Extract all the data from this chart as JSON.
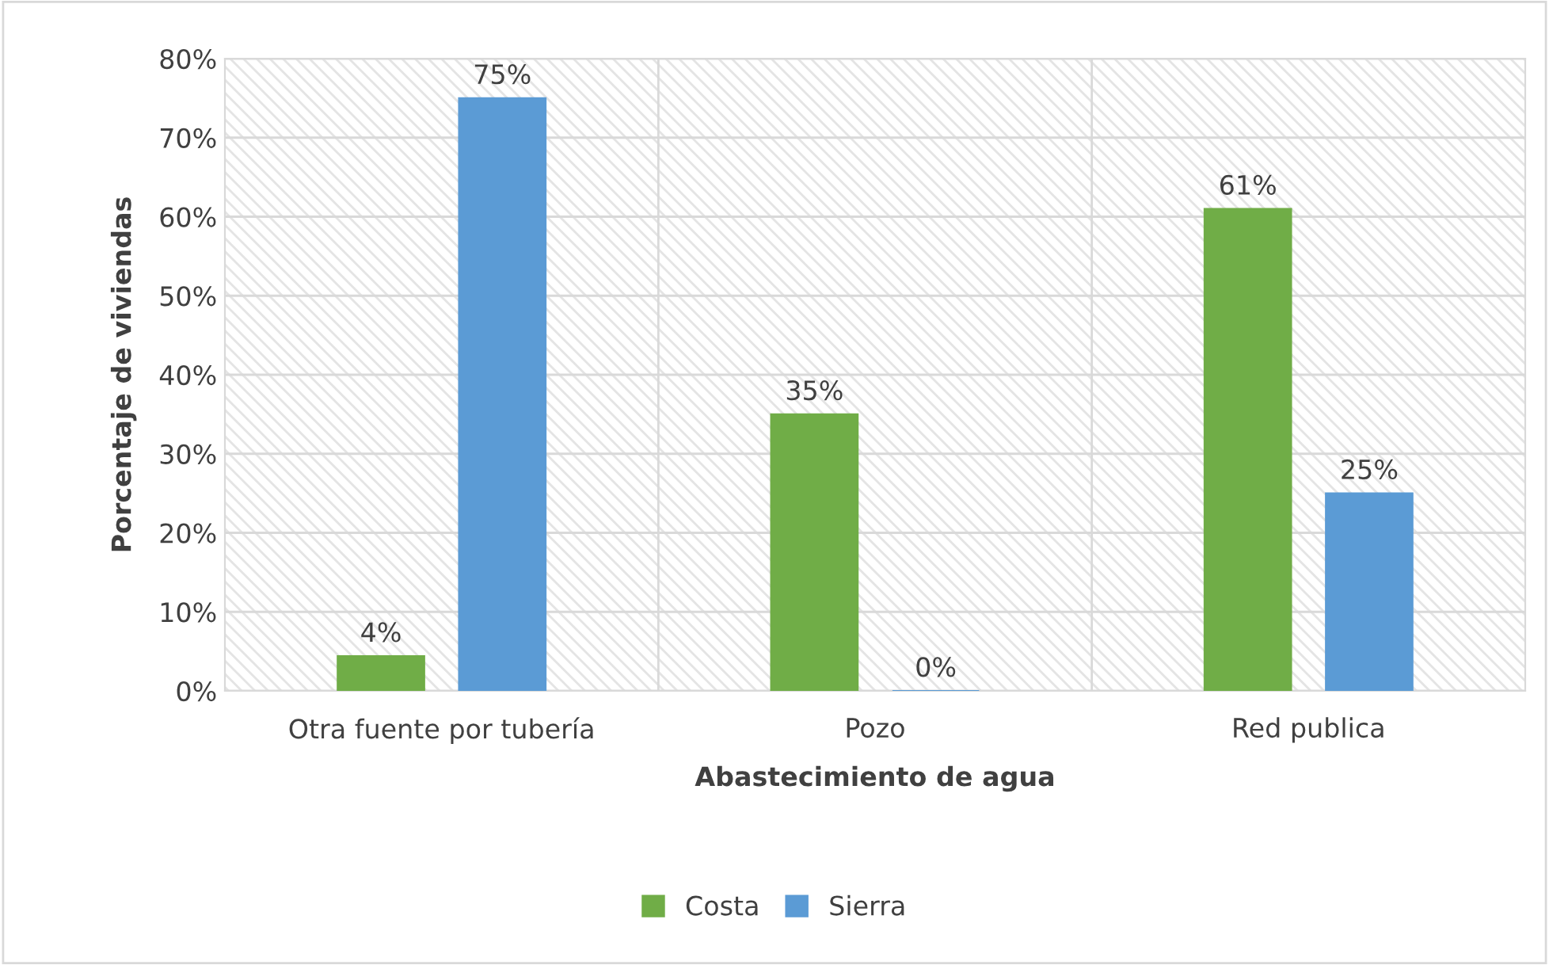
{
  "chart_data": {
    "type": "bar",
    "xlabel": "Abastecimiento de agua",
    "ylabel": "Porcentaje de viviendas",
    "categories": [
      "Otra fuente por tubería",
      "Pozo",
      "Red publica"
    ],
    "series": [
      {
        "name": "Costa",
        "color": "#70ad47",
        "values": [
          4.4,
          35,
          61
        ],
        "value_labels": [
          "4%",
          "35%",
          "61%"
        ]
      },
      {
        "name": "Sierra",
        "color": "#5b9bd5",
        "values": [
          75,
          0,
          25
        ],
        "value_labels": [
          "75%",
          "0%",
          "25%"
        ]
      }
    ],
    "ylim": [
      0,
      80
    ],
    "yticks": [
      {
        "value": 0,
        "label": "0%"
      },
      {
        "value": 10,
        "label": "10%"
      },
      {
        "value": 20,
        "label": "20%"
      },
      {
        "value": 30,
        "label": "30%"
      },
      {
        "value": 40,
        "label": "40%"
      },
      {
        "value": 50,
        "label": "50%"
      },
      {
        "value": 60,
        "label": "60%"
      },
      {
        "value": 70,
        "label": "70%"
      },
      {
        "value": 80,
        "label": "80%"
      }
    ],
    "grid": true,
    "legend": "bottom"
  }
}
